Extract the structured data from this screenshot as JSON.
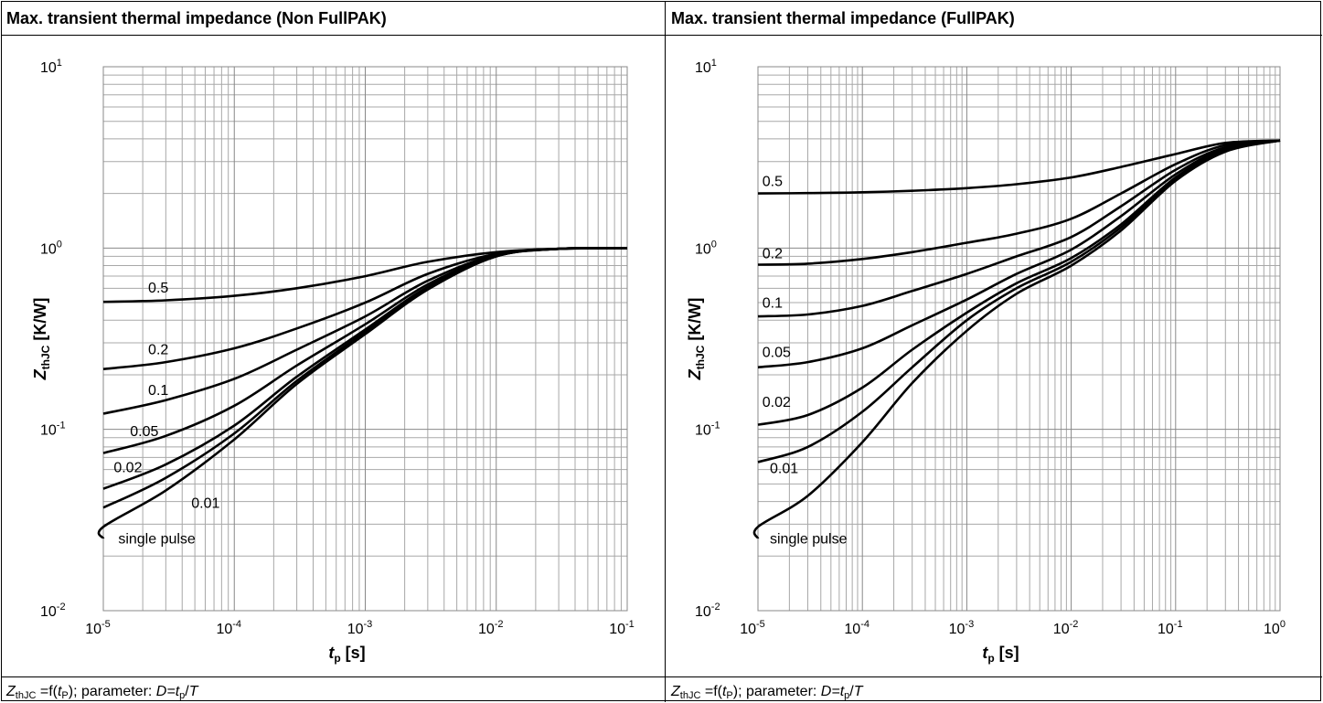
{
  "panels": [
    {
      "title": "Max. transient thermal impedance (Non FullPAK)",
      "caption": {
        "z_sym": "Z",
        "z_sub": "thJC",
        "mid": " =f(",
        "t_sym": "t",
        "t_sub": "P",
        "tail": "); parameter: ",
        "d_sym": "D",
        "eq": "=",
        "t2_sym": "t",
        "t2_sub": "p",
        "slash": "/",
        "T_sym": "T"
      }
    },
    {
      "title": "Max. transient thermal impedance (FullPAK)",
      "caption": {
        "z_sym": "Z",
        "z_sub": "thJC",
        "mid": " =f(",
        "t_sym": "t",
        "t_sub": "P",
        "tail": "); parameter: ",
        "d_sym": "D",
        "eq": "=",
        "t2_sym": "t",
        "t2_sub": "p",
        "slash": "/",
        "T_sym": "T"
      }
    }
  ],
  "chart_data": [
    {
      "type": "line",
      "title": "Max. transient thermal impedance (Non FullPAK)",
      "xlabel": "tp [s]",
      "xlabel_parts": [
        "t",
        "p",
        " [s]"
      ],
      "ylabel": "ZthJC [K/W]",
      "ylabel_parts": [
        "Z",
        "thJC",
        " [K/W]"
      ],
      "x_scale": "log",
      "y_scale": "log",
      "xlim": [
        1e-05,
        0.1
      ],
      "ylim": [
        0.01,
        10
      ],
      "grid": true,
      "x_ticks": [
        {
          "base": "10",
          "exp": "-5"
        },
        {
          "base": "10",
          "exp": "-4"
        },
        {
          "base": "10",
          "exp": "-3"
        },
        {
          "base": "10",
          "exp": "-2"
        },
        {
          "base": "10",
          "exp": "-1"
        }
      ],
      "y_ticks": [
        {
          "base": "10",
          "exp": "-2"
        },
        {
          "base": "10",
          "exp": "-1"
        },
        {
          "base": "10",
          "exp": "0"
        },
        {
          "base": "10",
          "exp": "1"
        }
      ],
      "series": [
        {
          "name": "0.5",
          "label_at": [
            2.2e-05,
            0.57
          ],
          "x": [
            1e-05,
            3e-05,
            0.0001,
            0.0003,
            0.001,
            0.003,
            0.01,
            0.03,
            0.1
          ],
          "y": [
            0.505,
            0.515,
            0.545,
            0.6,
            0.7,
            0.84,
            0.95,
            0.99,
            1.0
          ]
        },
        {
          "name": "0.2",
          "label_at": [
            2.2e-05,
            0.26
          ],
          "x": [
            1e-05,
            3e-05,
            0.0001,
            0.0003,
            0.001,
            0.003,
            0.01,
            0.03,
            0.1
          ],
          "y": [
            0.215,
            0.235,
            0.28,
            0.36,
            0.5,
            0.72,
            0.93,
            0.99,
            1.0
          ]
        },
        {
          "name": "0.1",
          "label_at": [
            2.2e-05,
            0.155
          ],
          "x": [
            1e-05,
            3e-05,
            0.0001,
            0.0003,
            0.001,
            0.003,
            0.01,
            0.03,
            0.1
          ],
          "y": [
            0.122,
            0.145,
            0.19,
            0.275,
            0.42,
            0.66,
            0.92,
            0.99,
            1.0
          ]
        },
        {
          "name": "0.05",
          "label_at": [
            1.6e-05,
            0.092
          ],
          "x": [
            1e-05,
            3e-05,
            0.0001,
            0.0003,
            0.001,
            0.003,
            0.01,
            0.03,
            0.1
          ],
          "y": [
            0.074,
            0.092,
            0.135,
            0.225,
            0.38,
            0.63,
            0.91,
            0.99,
            1.0
          ]
        },
        {
          "name": "0.02",
          "label_at": [
            1.2e-05,
            0.058
          ],
          "x": [
            1e-05,
            3e-05,
            0.0001,
            0.0003,
            0.001,
            0.003,
            0.01,
            0.03,
            0.1
          ],
          "y": [
            0.047,
            0.064,
            0.105,
            0.195,
            0.355,
            0.61,
            0.9,
            0.99,
            1.0
          ]
        },
        {
          "name": "0.01",
          "label_at": [
            4.7e-05,
            0.037
          ],
          "x": [
            1e-05,
            3e-05,
            0.0001,
            0.0003,
            0.001,
            0.003,
            0.01,
            0.03,
            0.1
          ],
          "y": [
            0.037,
            0.054,
            0.095,
            0.185,
            0.345,
            0.6,
            0.9,
            0.99,
            1.0
          ]
        },
        {
          "name": "single pulse",
          "label_at": [
            1.3e-05,
            0.0235
          ],
          "x": [
            1e-05,
            1e-05,
            3e-05,
            0.0001,
            0.0003,
            0.001,
            0.003,
            0.01,
            0.03,
            0.1
          ],
          "y": [
            0.025,
            0.029,
            0.046,
            0.088,
            0.178,
            0.335,
            0.59,
            0.9,
            0.99,
            1.0
          ]
        }
      ]
    },
    {
      "type": "line",
      "title": "Max. transient thermal impedance (FullPAK)",
      "xlabel": "tp [s]",
      "xlabel_parts": [
        "t",
        "p",
        " [s]"
      ],
      "ylabel": "ZthJC [K/W]",
      "ylabel_parts": [
        "Z",
        "thJC",
        " [K/W]"
      ],
      "x_scale": "log",
      "y_scale": "log",
      "xlim": [
        1e-05,
        1
      ],
      "ylim": [
        0.01,
        10
      ],
      "grid": true,
      "x_ticks": [
        {
          "base": "10",
          "exp": "-5"
        },
        {
          "base": "10",
          "exp": "-4"
        },
        {
          "base": "10",
          "exp": "-3"
        },
        {
          "base": "10",
          "exp": "-2"
        },
        {
          "base": "10",
          "exp": "-1"
        },
        {
          "base": "10",
          "exp": "0"
        }
      ],
      "y_ticks": [
        {
          "base": "10",
          "exp": "-2"
        },
        {
          "base": "10",
          "exp": "-1"
        },
        {
          "base": "10",
          "exp": "0"
        },
        {
          "base": "10",
          "exp": "1"
        }
      ],
      "series": [
        {
          "name": "0.5",
          "label_at": [
            1.1e-05,
            2.2
          ],
          "x": [
            1e-05,
            3e-05,
            0.0001,
            0.0003,
            0.001,
            0.003,
            0.01,
            0.03,
            0.1,
            0.3,
            1
          ],
          "y": [
            2.0,
            2.01,
            2.03,
            2.07,
            2.14,
            2.25,
            2.45,
            2.8,
            3.3,
            3.8,
            3.92
          ]
        },
        {
          "name": "0.2",
          "label_at": [
            1.1e-05,
            0.88
          ],
          "x": [
            1e-05,
            3e-05,
            0.0001,
            0.0003,
            0.001,
            0.003,
            0.01,
            0.03,
            0.1,
            0.3,
            1
          ],
          "y": [
            0.81,
            0.82,
            0.87,
            0.95,
            1.07,
            1.2,
            1.45,
            2.0,
            2.9,
            3.7,
            3.92
          ]
        },
        {
          "name": "0.1",
          "label_at": [
            1.1e-05,
            0.47
          ],
          "x": [
            1e-05,
            3e-05,
            0.0001,
            0.0003,
            0.001,
            0.003,
            0.01,
            0.03,
            0.1,
            0.3,
            1
          ],
          "y": [
            0.42,
            0.43,
            0.48,
            0.58,
            0.72,
            0.9,
            1.15,
            1.7,
            2.7,
            3.6,
            3.92
          ]
        },
        {
          "name": "0.05",
          "label_at": [
            1.1e-05,
            0.25
          ],
          "x": [
            1e-05,
            3e-05,
            0.0001,
            0.0003,
            0.001,
            0.003,
            0.01,
            0.03,
            0.1,
            0.3,
            1
          ],
          "y": [
            0.22,
            0.235,
            0.28,
            0.375,
            0.52,
            0.72,
            0.98,
            1.5,
            2.55,
            3.55,
            3.92
          ]
        },
        {
          "name": "0.02",
          "label_at": [
            1.1e-05,
            0.133
          ],
          "x": [
            1e-05,
            3e-05,
            0.0001,
            0.0003,
            0.001,
            0.003,
            0.01,
            0.03,
            0.1,
            0.3,
            1
          ],
          "y": [
            0.106,
            0.12,
            0.17,
            0.275,
            0.44,
            0.64,
            0.88,
            1.35,
            2.45,
            3.5,
            3.92
          ]
        },
        {
          "name": "0.01",
          "label_at": [
            1.3e-05,
            0.0575
          ],
          "x": [
            1e-05,
            3e-05,
            0.0001,
            0.0003,
            0.001,
            0.003,
            0.01,
            0.03,
            0.1,
            0.3,
            1
          ],
          "y": [
            0.066,
            0.08,
            0.125,
            0.22,
            0.4,
            0.6,
            0.84,
            1.3,
            2.4,
            3.45,
            3.92
          ]
        },
        {
          "name": "single pulse",
          "label_at": [
            1.3e-05,
            0.0235
          ],
          "x": [
            1e-05,
            1e-05,
            3e-05,
            0.0001,
            0.0003,
            0.001,
            0.003,
            0.01,
            0.03,
            0.1,
            0.3,
            1
          ],
          "y": [
            0.025,
            0.029,
            0.043,
            0.085,
            0.18,
            0.35,
            0.56,
            0.8,
            1.25,
            2.35,
            3.4,
            3.92
          ]
        }
      ]
    }
  ]
}
